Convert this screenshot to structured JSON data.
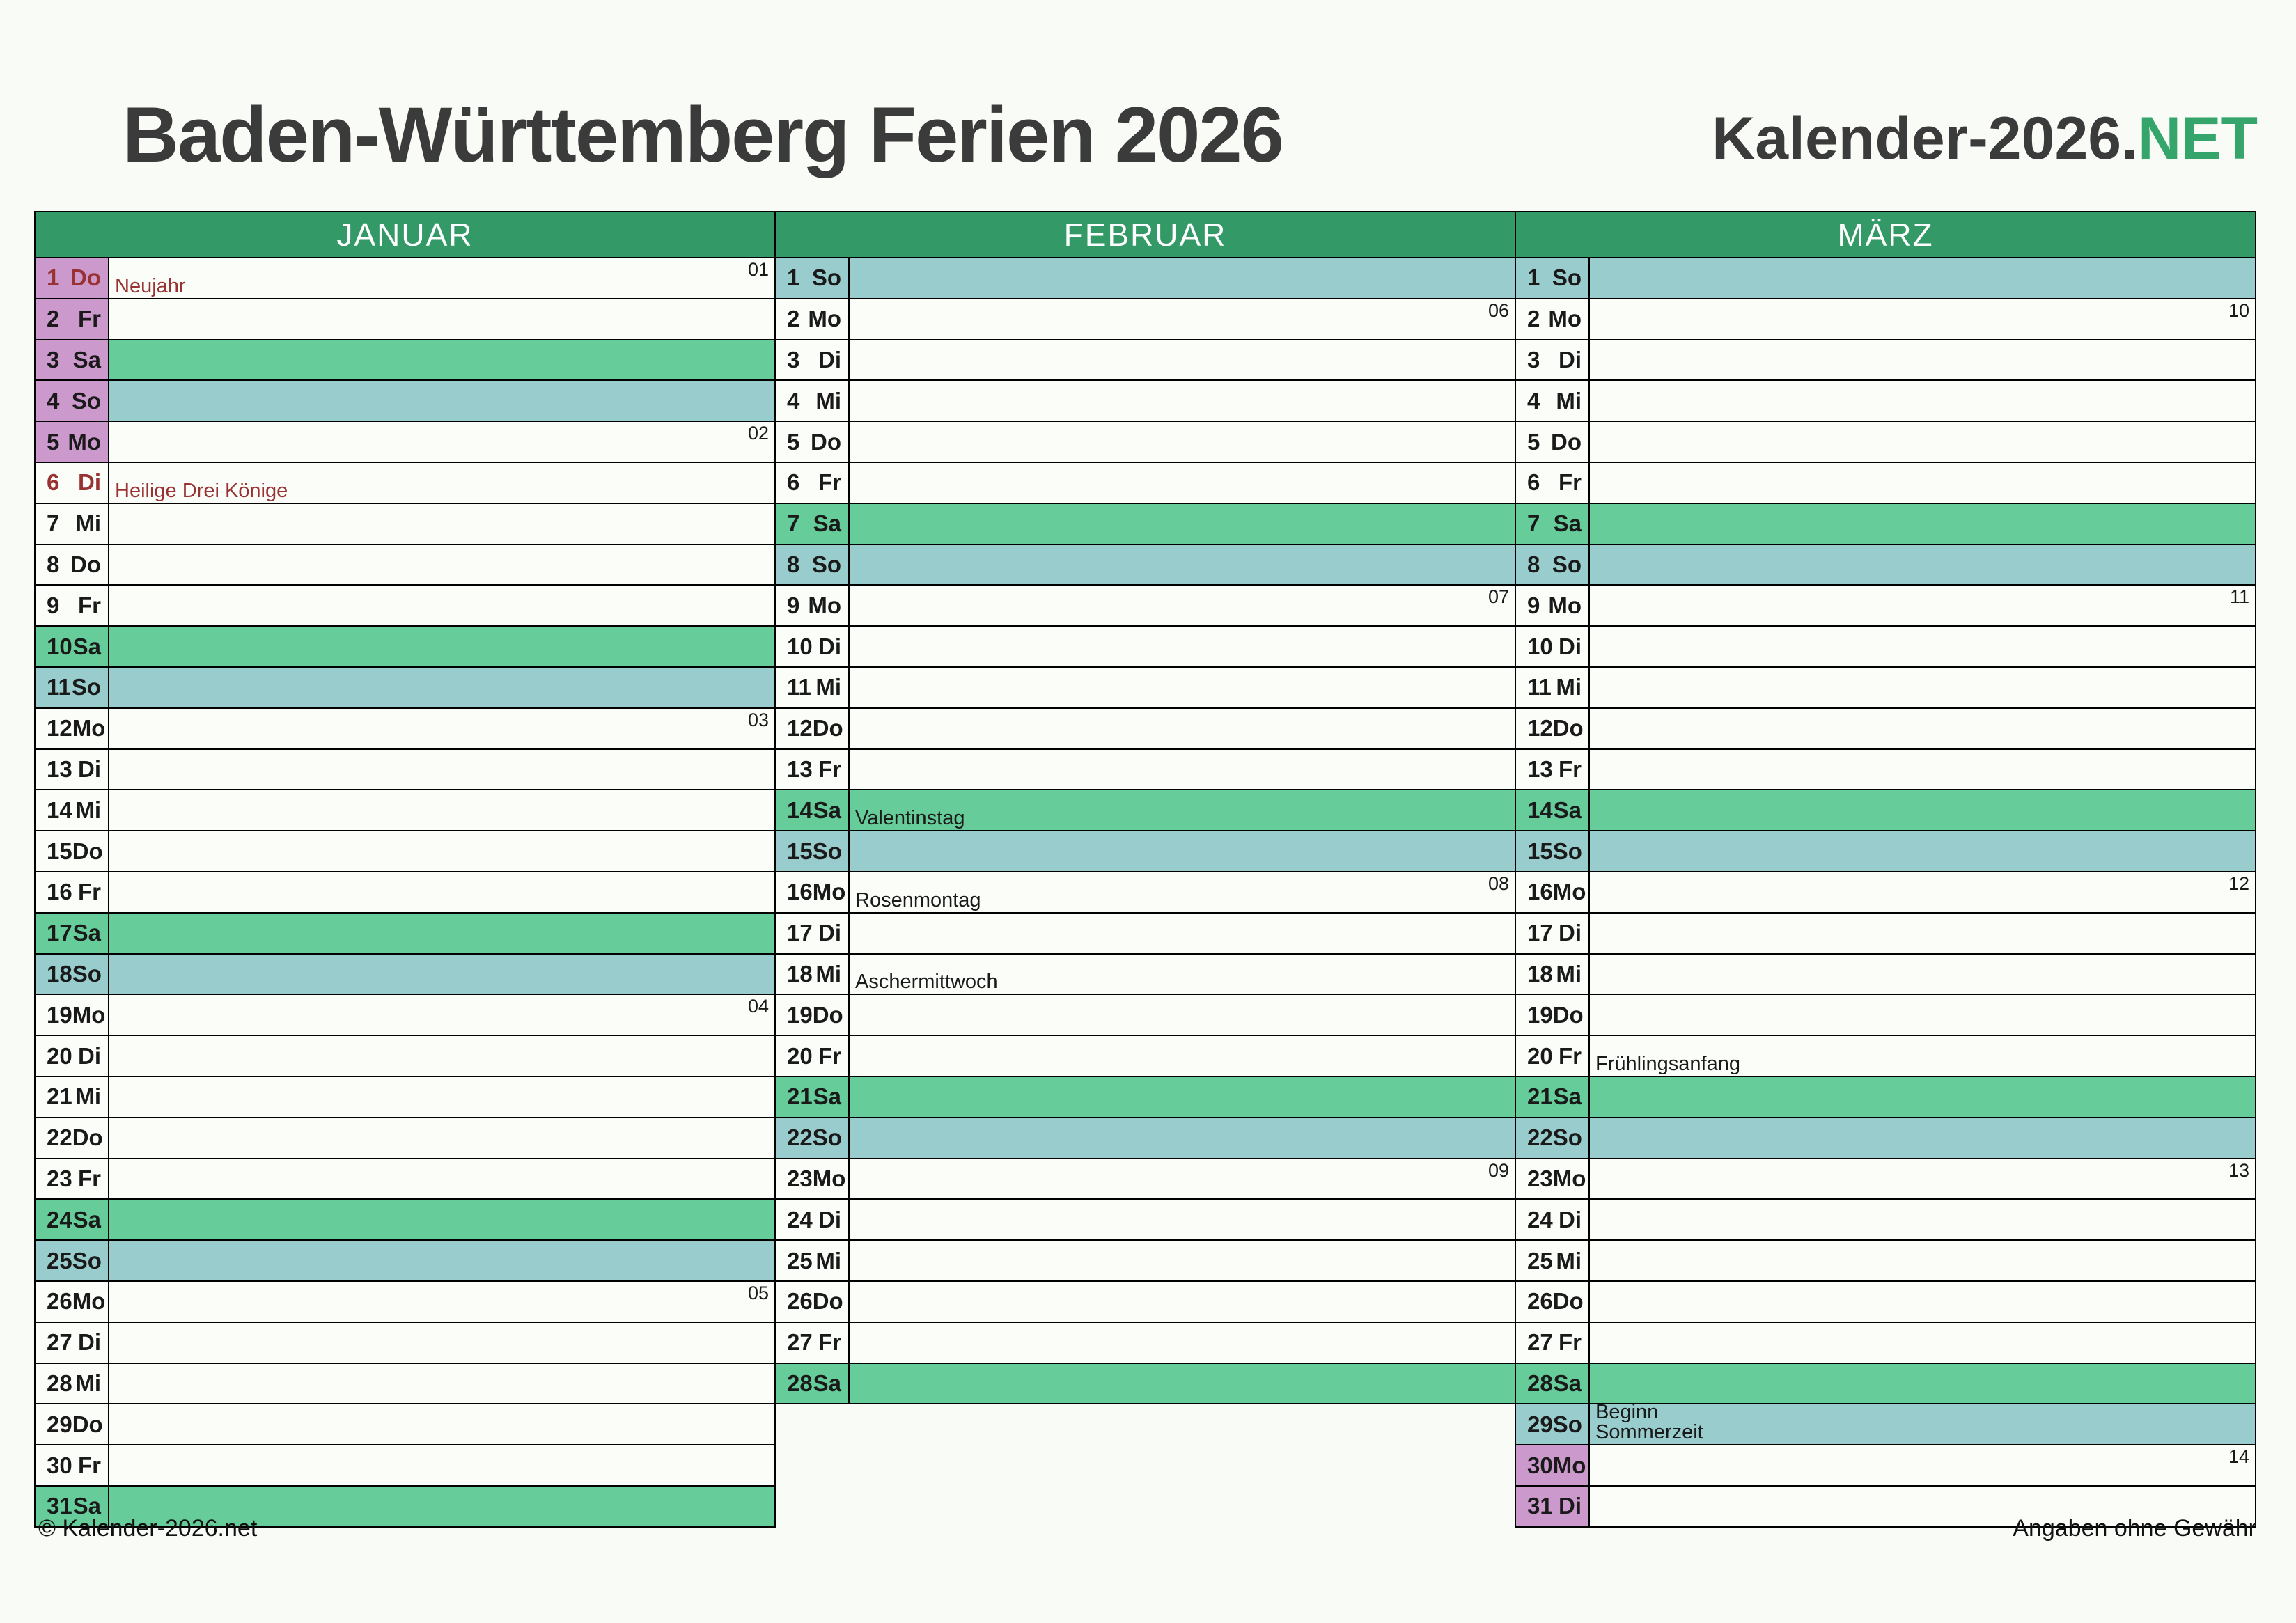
{
  "title": "Baden-Württemberg Ferien 2026",
  "logo": {
    "prefix": "Kalender-2026.",
    "suffix": "NET"
  },
  "footer": {
    "left": "© Kalender-2026.net",
    "right": "Angaben ohne Gewähr"
  },
  "colors": {
    "header_green": "#339966",
    "saturday_green": "#66cc99",
    "sunday_teal": "#99cccc",
    "ferien_purple": "#cc99cc",
    "public_holiday_red": "#993333",
    "logo_net_green": "#36a56c",
    "title_gray": "#3b3b3b"
  },
  "months": [
    {
      "name": "JANUAR",
      "days": [
        {
          "d": 1,
          "wd": "Do",
          "week": "01",
          "holiday": "Neujahr",
          "public": true,
          "ferien": true
        },
        {
          "d": 2,
          "wd": "Fr",
          "ferien": true
        },
        {
          "d": 3,
          "wd": "Sa",
          "ferien": true
        },
        {
          "d": 4,
          "wd": "So",
          "ferien": true
        },
        {
          "d": 5,
          "wd": "Mo",
          "week": "02",
          "ferien": true
        },
        {
          "d": 6,
          "wd": "Di",
          "holiday": "Heilige Drei Könige",
          "public": true
        },
        {
          "d": 7,
          "wd": "Mi"
        },
        {
          "d": 8,
          "wd": "Do"
        },
        {
          "d": 9,
          "wd": "Fr"
        },
        {
          "d": 10,
          "wd": "Sa"
        },
        {
          "d": 11,
          "wd": "So"
        },
        {
          "d": 12,
          "wd": "Mo",
          "week": "03"
        },
        {
          "d": 13,
          "wd": "Di"
        },
        {
          "d": 14,
          "wd": "Mi"
        },
        {
          "d": 15,
          "wd": "Do"
        },
        {
          "d": 16,
          "wd": "Fr"
        },
        {
          "d": 17,
          "wd": "Sa"
        },
        {
          "d": 18,
          "wd": "So"
        },
        {
          "d": 19,
          "wd": "Mo",
          "week": "04"
        },
        {
          "d": 20,
          "wd": "Di"
        },
        {
          "d": 21,
          "wd": "Mi"
        },
        {
          "d": 22,
          "wd": "Do"
        },
        {
          "d": 23,
          "wd": "Fr"
        },
        {
          "d": 24,
          "wd": "Sa"
        },
        {
          "d": 25,
          "wd": "So"
        },
        {
          "d": 26,
          "wd": "Mo",
          "week": "05"
        },
        {
          "d": 27,
          "wd": "Di"
        },
        {
          "d": 28,
          "wd": "Mi"
        },
        {
          "d": 29,
          "wd": "Do"
        },
        {
          "d": 30,
          "wd": "Fr"
        },
        {
          "d": 31,
          "wd": "Sa"
        }
      ]
    },
    {
      "name": "FEBRUAR",
      "days": [
        {
          "d": 1,
          "wd": "So"
        },
        {
          "d": 2,
          "wd": "Mo",
          "week": "06"
        },
        {
          "d": 3,
          "wd": "Di"
        },
        {
          "d": 4,
          "wd": "Mi"
        },
        {
          "d": 5,
          "wd": "Do"
        },
        {
          "d": 6,
          "wd": "Fr"
        },
        {
          "d": 7,
          "wd": "Sa"
        },
        {
          "d": 8,
          "wd": "So"
        },
        {
          "d": 9,
          "wd": "Mo",
          "week": "07"
        },
        {
          "d": 10,
          "wd": "Di"
        },
        {
          "d": 11,
          "wd": "Mi"
        },
        {
          "d": 12,
          "wd": "Do"
        },
        {
          "d": 13,
          "wd": "Fr"
        },
        {
          "d": 14,
          "wd": "Sa",
          "holiday": "Valentinstag"
        },
        {
          "d": 15,
          "wd": "So"
        },
        {
          "d": 16,
          "wd": "Mo",
          "week": "08",
          "holiday": "Rosenmontag"
        },
        {
          "d": 17,
          "wd": "Di"
        },
        {
          "d": 18,
          "wd": "Mi",
          "holiday": "Aschermittwoch"
        },
        {
          "d": 19,
          "wd": "Do"
        },
        {
          "d": 20,
          "wd": "Fr"
        },
        {
          "d": 21,
          "wd": "Sa"
        },
        {
          "d": 22,
          "wd": "So"
        },
        {
          "d": 23,
          "wd": "Mo",
          "week": "09"
        },
        {
          "d": 24,
          "wd": "Di"
        },
        {
          "d": 25,
          "wd": "Mi"
        },
        {
          "d": 26,
          "wd": "Do"
        },
        {
          "d": 27,
          "wd": "Fr"
        },
        {
          "d": 28,
          "wd": "Sa"
        }
      ]
    },
    {
      "name": "MÄRZ",
      "days": [
        {
          "d": 1,
          "wd": "So"
        },
        {
          "d": 2,
          "wd": "Mo",
          "week": "10"
        },
        {
          "d": 3,
          "wd": "Di"
        },
        {
          "d": 4,
          "wd": "Mi"
        },
        {
          "d": 5,
          "wd": "Do"
        },
        {
          "d": 6,
          "wd": "Fr"
        },
        {
          "d": 7,
          "wd": "Sa"
        },
        {
          "d": 8,
          "wd": "So"
        },
        {
          "d": 9,
          "wd": "Mo",
          "week": "11"
        },
        {
          "d": 10,
          "wd": "Di"
        },
        {
          "d": 11,
          "wd": "Mi"
        },
        {
          "d": 12,
          "wd": "Do"
        },
        {
          "d": 13,
          "wd": "Fr"
        },
        {
          "d": 14,
          "wd": "Sa"
        },
        {
          "d": 15,
          "wd": "So"
        },
        {
          "d": 16,
          "wd": "Mo",
          "week": "12"
        },
        {
          "d": 17,
          "wd": "Di"
        },
        {
          "d": 18,
          "wd": "Mi"
        },
        {
          "d": 19,
          "wd": "Do"
        },
        {
          "d": 20,
          "wd": "Fr",
          "holiday": "Frühlingsanfang"
        },
        {
          "d": 21,
          "wd": "Sa"
        },
        {
          "d": 22,
          "wd": "So"
        },
        {
          "d": 23,
          "wd": "Mo",
          "week": "13"
        },
        {
          "d": 24,
          "wd": "Di"
        },
        {
          "d": 25,
          "wd": "Mi"
        },
        {
          "d": 26,
          "wd": "Do"
        },
        {
          "d": 27,
          "wd": "Fr"
        },
        {
          "d": 28,
          "wd": "Sa"
        },
        {
          "d": 29,
          "wd": "So",
          "holiday": "Beginn\nSommerzeit"
        },
        {
          "d": 30,
          "wd": "Mo",
          "week": "14",
          "ferien": true
        },
        {
          "d": 31,
          "wd": "Di",
          "ferien": true
        }
      ]
    }
  ]
}
